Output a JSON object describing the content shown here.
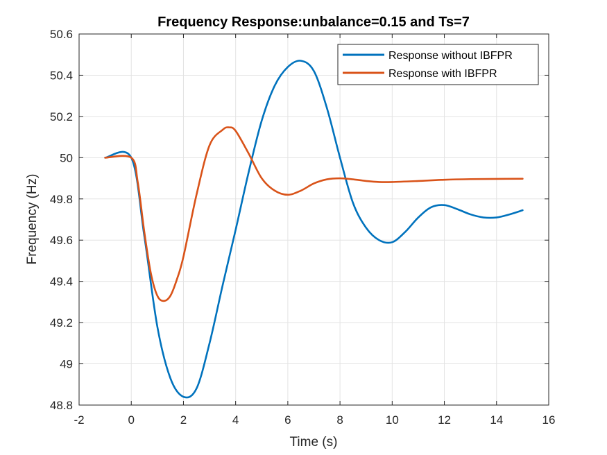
{
  "chart_data": {
    "type": "line",
    "title": "Frequency Response:unbalance=0.15 and Ts=7",
    "xlabel": "Time (s)",
    "ylabel": "Frequency (Hz)",
    "xlim": [
      -2,
      16
    ],
    "ylim": [
      48.8,
      50.6
    ],
    "xticks": [
      -2,
      0,
      2,
      4,
      6,
      8,
      10,
      12,
      14,
      16
    ],
    "yticks": [
      48.8,
      49,
      49.2,
      49.4,
      49.6,
      49.8,
      50,
      50.2,
      50.4,
      50.6
    ],
    "xtick_labels": [
      "-2",
      "0",
      "2",
      "4",
      "6",
      "8",
      "10",
      "12",
      "14",
      "16"
    ],
    "ytick_labels": [
      "48.8",
      "49",
      "49.2",
      "49.4",
      "49.6",
      "49.8",
      "50",
      "50.2",
      "50.4",
      "50.6"
    ],
    "grid": true,
    "legend_position": "top-right",
    "series": [
      {
        "name": "Response without IBFPR",
        "color": "#0072BD",
        "x": [
          -1,
          0,
          0.5,
          1,
          1.5,
          2,
          2.5,
          3,
          3.5,
          4,
          4.5,
          5,
          5.5,
          6,
          6.5,
          7,
          7.5,
          8,
          8.5,
          9,
          9.5,
          10,
          10.5,
          11,
          11.5,
          12,
          12.5,
          13,
          13.5,
          14,
          14.5,
          15
        ],
        "y": [
          50,
          50,
          49.62,
          49.18,
          48.93,
          48.84,
          48.88,
          49.1,
          49.38,
          49.65,
          49.93,
          50.18,
          50.35,
          50.44,
          50.47,
          50.42,
          50.24,
          50.0,
          49.78,
          49.66,
          49.6,
          49.59,
          49.64,
          49.71,
          49.76,
          49.77,
          49.75,
          49.725,
          49.71,
          49.71,
          49.725,
          49.745
        ]
      },
      {
        "name": "Response with IBFPR",
        "color": "#D95319",
        "x": [
          -1,
          0,
          0.25,
          0.5,
          0.75,
          1,
          1.25,
          1.5,
          1.75,
          2,
          2.5,
          3,
          3.5,
          3.75,
          4,
          4.5,
          5,
          5.5,
          6,
          6.5,
          7,
          7.5,
          8,
          8.5,
          9,
          9.5,
          10,
          11,
          12,
          13,
          14,
          15
        ],
        "y": [
          50,
          50,
          49.88,
          49.64,
          49.44,
          49.33,
          49.305,
          49.33,
          49.41,
          49.52,
          49.82,
          50.06,
          50.135,
          50.147,
          50.13,
          50.02,
          49.9,
          49.84,
          49.82,
          49.84,
          49.875,
          49.895,
          49.9,
          49.895,
          49.887,
          49.882,
          49.882,
          49.887,
          49.893,
          49.896,
          49.897,
          49.898
        ]
      }
    ]
  }
}
